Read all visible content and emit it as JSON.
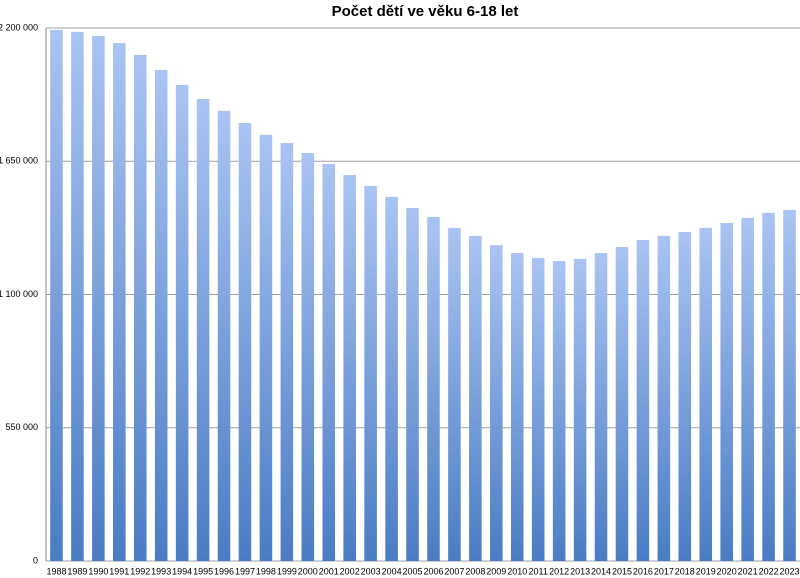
{
  "chart_data": {
    "type": "bar",
    "title": "Počet dětí ve věku 6-18 let",
    "categories": [
      "1988",
      "1989",
      "1990",
      "1991",
      "1992",
      "1993",
      "1994",
      "1995",
      "1996",
      "1997",
      "1998",
      "1999",
      "2000",
      "2001",
      "2002",
      "2003",
      "2004",
      "2005",
      "2006",
      "2007",
      "2008",
      "2009",
      "2010",
      "2011",
      "2012",
      "2013",
      "2014",
      "2015",
      "2016",
      "2017",
      "2018",
      "2019",
      "2020",
      "2021",
      "2022",
      "2023"
    ],
    "values": [
      2192000,
      2184000,
      2167000,
      2138000,
      2089000,
      2027000,
      1965000,
      1907000,
      1858000,
      1808000,
      1759000,
      1725000,
      1684000,
      1639000,
      1593000,
      1548000,
      1503000,
      1457000,
      1420000,
      1375000,
      1342000,
      1304000,
      1271000,
      1251000,
      1238000,
      1247000,
      1271000,
      1296000,
      1325000,
      1342000,
      1358000,
      1375000,
      1395000,
      1416000,
      1437000,
      1449000
    ],
    "color": "#4a7cc4",
    "ylim": [
      0,
      2200000
    ],
    "yticks": [
      0,
      {
        "value": 550000,
        "label": "550 000"
      },
      {
        "value": 1100000,
        "label": "1 100 000"
      },
      {
        "value": 1650000,
        "label": "1 650 000"
      },
      {
        "value": 2200000,
        "label": "2 200 000"
      }
    ],
    "grid": true
  }
}
